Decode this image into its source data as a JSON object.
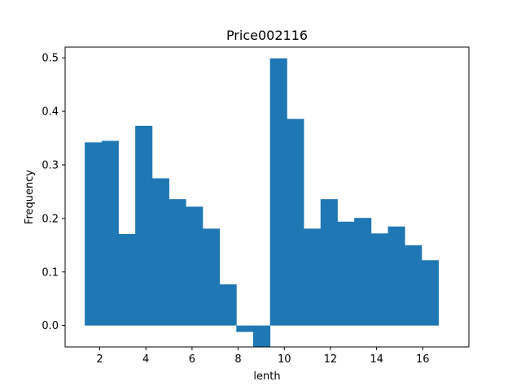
{
  "chart_data": {
    "type": "bar",
    "title": "Price002116",
    "xlabel": "lenth",
    "ylabel": "Frequency",
    "xlim": [
      0.5,
      18.0
    ],
    "ylim": [
      -0.04,
      0.52
    ],
    "grid": false,
    "bar_color": "#1f77b4",
    "bin_width": 0.73,
    "x": [
      1.35,
      2.08,
      2.81,
      3.54,
      4.27,
      5.0,
      5.73,
      6.46,
      7.19,
      7.92,
      8.65,
      9.38,
      10.11,
      10.84,
      11.57,
      12.3,
      13.03,
      13.76,
      14.49,
      15.22,
      15.95
    ],
    "values": [
      0.342,
      0.345,
      0.171,
      0.373,
      0.275,
      0.236,
      0.222,
      0.181,
      0.077,
      -0.012,
      -0.04,
      0.499,
      0.386,
      0.181,
      0.236,
      0.194,
      0.201,
      0.172,
      0.185,
      0.15,
      0.122
    ],
    "x_ticks": [
      "2",
      "4",
      "6",
      "8",
      "10",
      "12",
      "14",
      "16"
    ],
    "y_ticks": [
      "0.0",
      "0.1",
      "0.2",
      "0.3",
      "0.4",
      "0.5"
    ]
  }
}
